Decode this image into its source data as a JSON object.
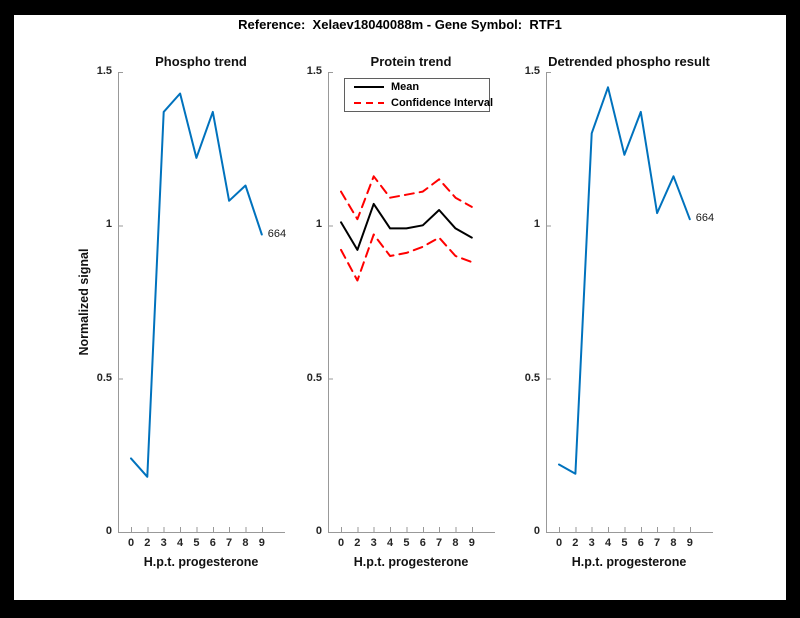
{
  "page_title": "Reference:  Xelaev18040088m - Gene Symbol:  RTF1",
  "colors": {
    "blue": "#0072BD",
    "red": "#FF0000",
    "black": "#000000",
    "axis": "#999999",
    "tick_text": "#262626",
    "frame": "#000000",
    "background": "#FFFFFF"
  },
  "chart_data": [
    {
      "type": "line",
      "title": "Phospho trend",
      "xlabel": "H.p.t. progesterone",
      "ylabel": "Normalized signal",
      "categories": [
        "0",
        "2",
        "3",
        "4",
        "5",
        "6",
        "7",
        "8",
        "9"
      ],
      "ylim": [
        0,
        1.5
      ],
      "yticks": [
        0,
        0.5,
        1,
        1.5
      ],
      "ytick_labels": [
        "0",
        "0.5",
        "1",
        "1.5"
      ],
      "grid": false,
      "end_label": "664",
      "series": [
        {
          "id": "phospho-line",
          "name": "Phospho trend",
          "color": "#0072BD",
          "style": "solid",
          "values": [
            0.24,
            0.18,
            1.37,
            1.43,
            1.22,
            1.37,
            1.08,
            1.13,
            0.97
          ]
        }
      ]
    },
    {
      "type": "line",
      "title": "Protein trend",
      "xlabel": "H.p.t. progesterone",
      "categories": [
        "0",
        "2",
        "3",
        "4",
        "5",
        "6",
        "7",
        "8",
        "9"
      ],
      "ylim": [
        0,
        1.5
      ],
      "yticks": [
        0,
        0.5,
        1,
        1.5
      ],
      "ytick_labels": [
        "0",
        "0.5",
        "1",
        "1.5"
      ],
      "grid": false,
      "legend": {
        "position": "top-left",
        "entries": [
          "Mean",
          "Confidence Interval"
        ]
      },
      "series": [
        {
          "id": "protein-mean-line",
          "name": "Mean",
          "color": "#000000",
          "style": "solid",
          "values": [
            1.01,
            0.92,
            1.07,
            0.99,
            0.99,
            1.0,
            1.05,
            0.99,
            0.96
          ]
        },
        {
          "id": "protein-ci-upper-line",
          "name": "Confidence Interval",
          "color": "#FF0000",
          "style": "dashed",
          "values": [
            1.11,
            1.02,
            1.16,
            1.09,
            1.1,
            1.11,
            1.15,
            1.09,
            1.06
          ]
        },
        {
          "id": "protein-ci-lower-line",
          "name": "Confidence Interval",
          "color": "#FF0000",
          "style": "dashed",
          "values": [
            0.92,
            0.82,
            0.97,
            0.9,
            0.91,
            0.93,
            0.96,
            0.9,
            0.88
          ]
        }
      ]
    },
    {
      "type": "line",
      "title": "Detrended phospho result",
      "xlabel": "H.p.t. progesterone",
      "categories": [
        "0",
        "2",
        "3",
        "4",
        "5",
        "6",
        "7",
        "8",
        "9"
      ],
      "ylim": [
        0,
        1.5
      ],
      "yticks": [
        0,
        0.5,
        1,
        1.5
      ],
      "ytick_labels": [
        "0",
        "0.5",
        "1",
        "1.5"
      ],
      "grid": false,
      "end_label": "664",
      "series": [
        {
          "id": "detrended-line",
          "name": "Detrended phospho result",
          "color": "#0072BD",
          "style": "solid",
          "values": [
            0.22,
            0.19,
            1.3,
            1.45,
            1.23,
            1.37,
            1.04,
            1.16,
            1.02
          ]
        }
      ]
    }
  ]
}
